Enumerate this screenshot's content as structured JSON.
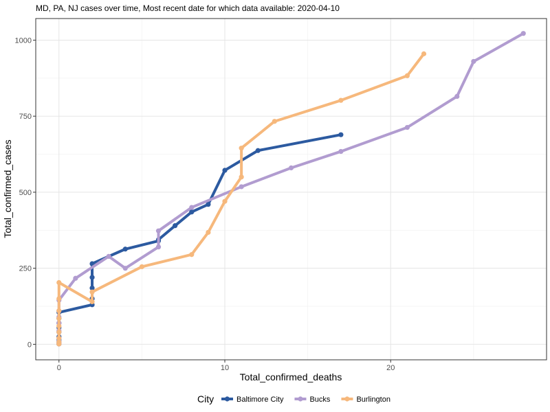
{
  "chart_data": {
    "type": "line",
    "title": "MD, PA, NJ cases over time, Most recent date for which data available: 2020-04-10",
    "xlabel": "Total_confirmed_deaths",
    "ylabel": "Total_confirmed_cases",
    "xlim": [
      -1.4,
      29.4
    ],
    "ylim": [
      -51,
      1071
    ],
    "x_ticks": [
      0,
      10,
      20
    ],
    "y_ticks": [
      0,
      250,
      500,
      750,
      1000
    ],
    "x_tick_labels": [
      "0",
      "10",
      "20"
    ],
    "y_tick_labels": [
      "0",
      "250",
      "500",
      "750",
      "1000"
    ],
    "grid": true,
    "legend_title": "City",
    "legend_position": "bottom",
    "series": [
      {
        "name": "Baltimore City",
        "color": "#2c5aa0",
        "points": [
          [
            0,
            1
          ],
          [
            0,
            2
          ],
          [
            0,
            8
          ],
          [
            0,
            14
          ],
          [
            0,
            25
          ],
          [
            0,
            40
          ],
          [
            0,
            55
          ],
          [
            0,
            70
          ],
          [
            0,
            85
          ],
          [
            0,
            105
          ],
          [
            2,
            130
          ],
          [
            2,
            150
          ],
          [
            2,
            185
          ],
          [
            2,
            220
          ],
          [
            2,
            265
          ],
          [
            4,
            313
          ],
          [
            6,
            340
          ],
          [
            6,
            344
          ],
          [
            7,
            390
          ],
          [
            8,
            435
          ],
          [
            9,
            460
          ],
          [
            10,
            572
          ],
          [
            12,
            637
          ],
          [
            17,
            689
          ]
        ]
      },
      {
        "name": "Bucks",
        "color": "#b19cd0",
        "points": [
          [
            0,
            1
          ],
          [
            0,
            4
          ],
          [
            0,
            10
          ],
          [
            0,
            20
          ],
          [
            0,
            45
          ],
          [
            0,
            70
          ],
          [
            0,
            90
          ],
          [
            0,
            110
          ],
          [
            0,
            145
          ],
          [
            1,
            217
          ],
          [
            3,
            289
          ],
          [
            4,
            250
          ],
          [
            6,
            320
          ],
          [
            6,
            373
          ],
          [
            8,
            450
          ],
          [
            11,
            518
          ],
          [
            14,
            580
          ],
          [
            17,
            634
          ],
          [
            21,
            713
          ],
          [
            24,
            815
          ],
          [
            25,
            930
          ],
          [
            28,
            1022
          ]
        ]
      },
      {
        "name": "Burlington",
        "color": "#f6b87c",
        "points": [
          [
            0,
            1
          ],
          [
            0,
            3
          ],
          [
            0,
            8
          ],
          [
            0,
            20
          ],
          [
            0,
            40
          ],
          [
            0,
            60
          ],
          [
            0,
            85
          ],
          [
            0,
            110
          ],
          [
            0,
            150
          ],
          [
            0,
            203
          ],
          [
            2,
            140
          ],
          [
            2,
            172
          ],
          [
            5,
            255
          ],
          [
            8,
            295
          ],
          [
            9,
            368
          ],
          [
            10,
            470
          ],
          [
            11,
            550
          ],
          [
            11,
            645
          ],
          [
            13,
            733
          ],
          [
            17,
            802
          ],
          [
            21,
            883
          ],
          [
            22,
            955
          ]
        ]
      }
    ]
  }
}
